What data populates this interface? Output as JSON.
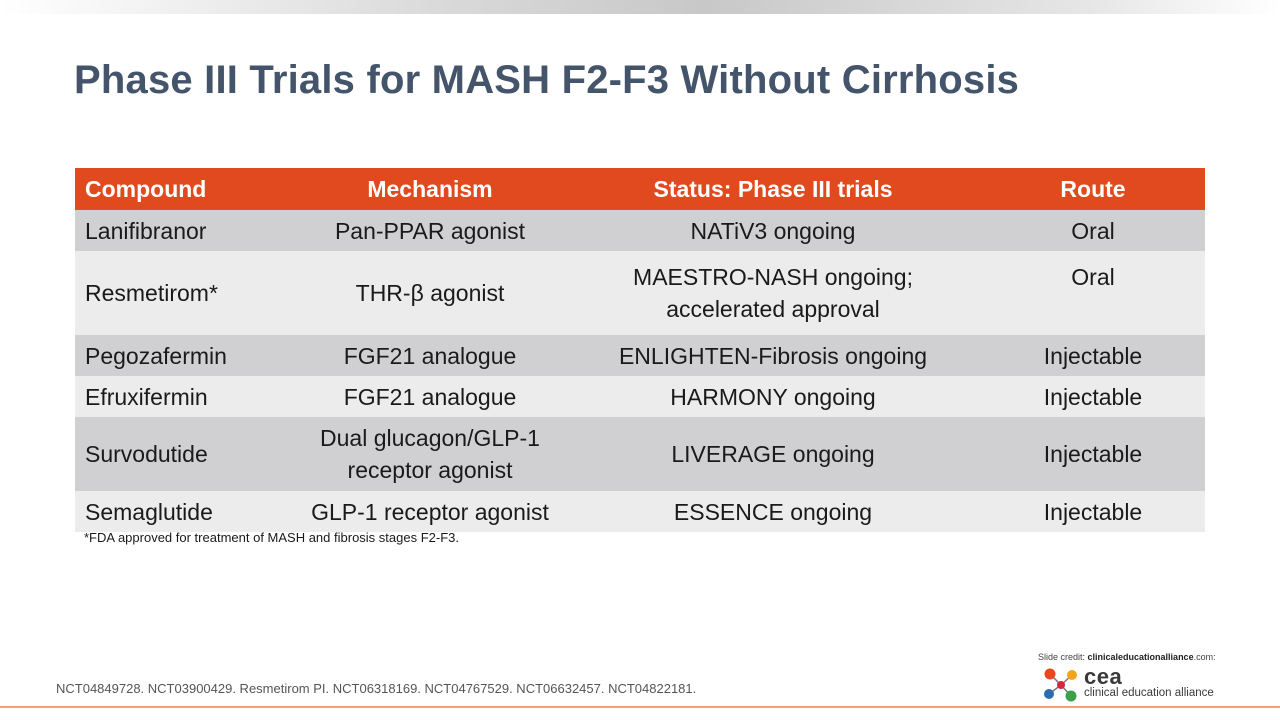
{
  "title": "Phase III Trials for MASH F2-F3 Without Cirrhosis",
  "table": {
    "headers": [
      "Compound",
      "Mechanism",
      "Status: Phase III trials",
      "Route"
    ],
    "rows": [
      {
        "compound": "Lanifibranor",
        "mechanism": [
          "Pan-PPAR agonist"
        ],
        "status": [
          "NATiV3 ongoing"
        ],
        "route": "Oral"
      },
      {
        "compound": "Resmetirom*",
        "mechanism": [
          "THR-β agonist"
        ],
        "status": [
          "MAESTRO-NASH ongoing;",
          "accelerated approval"
        ],
        "route": "Oral"
      },
      {
        "compound": "Pegozafermin",
        "mechanism": [
          "FGF21 analogue"
        ],
        "status": [
          "ENLIGHTEN-Fibrosis ongoing"
        ],
        "route": "Injectable"
      },
      {
        "compound": "Efruxifermin",
        "mechanism": [
          "FGF21 analogue"
        ],
        "status": [
          "HARMONY ongoing"
        ],
        "route": "Injectable"
      },
      {
        "compound": "Survodutide",
        "mechanism": [
          "Dual glucagon/GLP-1",
          "receptor agonist"
        ],
        "status": [
          "LIVERAGE ongoing"
        ],
        "route": "Injectable"
      },
      {
        "compound": "Semaglutide",
        "mechanism": [
          "GLP-1 receptor agonist"
        ],
        "status": [
          "ESSENCE ongoing"
        ],
        "route": "Injectable"
      }
    ]
  },
  "footnote": "*FDA approved for treatment of MASH and fibrosis stages F2-F3.",
  "references": "NCT04849728. NCT03900429. Resmetirom PI. NCT06318169. NCT04767529. NCT06632457. NCT04822181.",
  "credit": {
    "prefix": "Slide credit: ",
    "site": "clinicaleducationalliance",
    "suffix": ".com:"
  },
  "logo": {
    "word": "cea",
    "sub": "clinical education alliance"
  },
  "colors": {
    "title": "#44546a",
    "header_bg": "#e04a1e",
    "row_dark": "#d0d0d2",
    "row_light": "#ececed"
  }
}
